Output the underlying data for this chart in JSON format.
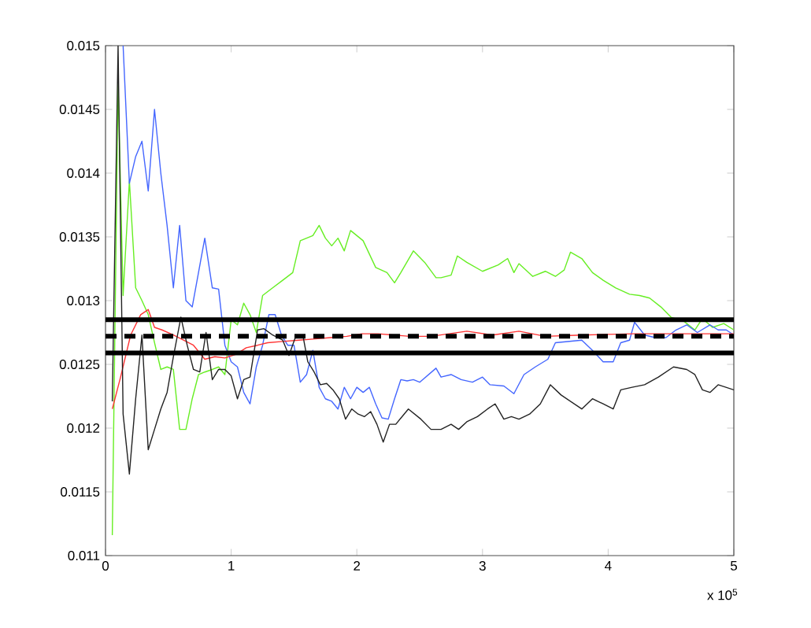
{
  "chart_data": {
    "type": "line",
    "xlim": [
      0,
      5
    ],
    "ylim": [
      0.011,
      0.015
    ],
    "xticks": [
      0,
      1,
      2,
      3,
      4,
      5
    ],
    "yticks": [
      0.011,
      0.0115,
      0.012,
      0.0125,
      0.013,
      0.0135,
      0.014,
      0.0145,
      0.015
    ],
    "annotations": [
      "x 10$^{5}$"
    ],
    "line_style": "solid",
    "marker": "none",
    "ref_lines": [
      {
        "axis": "y",
        "value": 0.01285,
        "color": "#000000",
        "line_style": "solid"
      },
      {
        "axis": "y",
        "value": 0.01272,
        "color": "#000000",
        "line_style": "dashed"
      },
      {
        "axis": "y",
        "value": 0.01259,
        "color": "#000000",
        "line_style": "solid"
      }
    ],
    "series": [
      {
        "color": "#66ee22",
        "x": [
          0.054,
          0.1,
          0.14,
          0.19,
          0.24,
          0.29,
          0.34,
          0.39,
          0.44,
          0.49,
          0.54,
          0.59,
          0.64,
          0.69,
          0.74,
          0.79,
          0.85,
          0.9,
          0.95,
          1.0,
          1.05,
          1.1,
          1.15,
          1.2,
          1.25,
          1.33,
          1.41,
          1.49,
          1.55,
          1.6,
          1.65,
          1.7,
          1.75,
          1.8,
          1.85,
          1.9,
          1.95,
          2.05,
          2.15,
          2.24,
          2.3,
          2.35,
          2.45,
          2.54,
          2.63,
          2.67,
          2.75,
          2.8,
          2.875,
          3.0,
          3.125,
          3.2,
          3.25,
          3.29,
          3.4,
          3.5,
          3.58,
          3.65,
          3.7,
          3.79,
          3.875,
          3.96,
          4.06,
          4.17,
          4.25,
          4.33,
          4.42,
          4.5,
          4.6,
          4.69,
          4.75,
          4.83,
          4.92,
          5.0
        ],
        "values": [
          0.01116,
          0.0147,
          0.01304,
          0.01394,
          0.0131,
          0.013,
          0.01289,
          0.01267,
          0.01246,
          0.01248,
          0.01246,
          0.01199,
          0.01199,
          0.01223,
          0.01242,
          0.01244,
          0.01246,
          0.01248,
          0.01242,
          0.01285,
          0.01281,
          0.01298,
          0.01289,
          0.01275,
          0.01304,
          0.0131,
          0.01316,
          0.01322,
          0.01347,
          0.01349,
          0.01351,
          0.01359,
          0.01349,
          0.01343,
          0.01349,
          0.01339,
          0.01355,
          0.01347,
          0.01326,
          0.01322,
          0.01314,
          0.01322,
          0.01339,
          0.0133,
          0.01318,
          0.01318,
          0.0132,
          0.01335,
          0.0133,
          0.01323,
          0.01328,
          0.01333,
          0.01322,
          0.01329,
          0.01319,
          0.01323,
          0.01319,
          0.01324,
          0.01338,
          0.01333,
          0.01322,
          0.01316,
          0.0131,
          0.01305,
          0.01304,
          0.01302,
          0.01295,
          0.01287,
          0.01284,
          0.01277,
          0.01286,
          0.01279,
          0.01282,
          0.01277
        ]
      },
      {
        "color": "#4466ff",
        "x": [
          0.14,
          0.19,
          0.24,
          0.29,
          0.34,
          0.39,
          0.44,
          0.49,
          0.54,
          0.59,
          0.64,
          0.69,
          0.74,
          0.79,
          0.85,
          0.9,
          0.95,
          1.0,
          1.05,
          1.1,
          1.15,
          1.2,
          1.25,
          1.3,
          1.35,
          1.4,
          1.45,
          1.5,
          1.55,
          1.6,
          1.65,
          1.7,
          1.75,
          1.8,
          1.85,
          1.9,
          1.95,
          2.0,
          2.05,
          2.1,
          2.15,
          2.2,
          2.25,
          2.3,
          2.35,
          2.4,
          2.45,
          2.5,
          2.63,
          2.67,
          2.75,
          2.83,
          2.92,
          3.0,
          3.06,
          3.17,
          3.25,
          3.33,
          3.42,
          3.52,
          3.58,
          3.79,
          3.875,
          3.96,
          4.04,
          4.1,
          4.17,
          4.21,
          4.29,
          4.375,
          4.46,
          4.54,
          4.625,
          4.71,
          4.81,
          4.875,
          4.94,
          5.0
        ],
        "values": [
          0.015,
          0.01392,
          0.01413,
          0.01425,
          0.01386,
          0.0145,
          0.014,
          0.01359,
          0.0131,
          0.01359,
          0.013,
          0.01295,
          0.01322,
          0.01349,
          0.0131,
          0.01309,
          0.01265,
          0.01252,
          0.01248,
          0.01228,
          0.01219,
          0.01248,
          0.01265,
          0.01289,
          0.01289,
          0.01273,
          0.01265,
          0.01265,
          0.01236,
          0.01242,
          0.01261,
          0.01232,
          0.01223,
          0.01221,
          0.01215,
          0.01232,
          0.01223,
          0.01232,
          0.01228,
          0.01232,
          0.01219,
          0.01208,
          0.01207,
          0.01223,
          0.01238,
          0.01237,
          0.01238,
          0.01236,
          0.01247,
          0.0124,
          0.01242,
          0.01238,
          0.01236,
          0.0124,
          0.01234,
          0.01233,
          0.01227,
          0.01242,
          0.01248,
          0.01254,
          0.01267,
          0.01269,
          0.01261,
          0.01252,
          0.01252,
          0.01267,
          0.01269,
          0.01283,
          0.01273,
          0.01271,
          0.01271,
          0.01277,
          0.01281,
          0.01275,
          0.01281,
          0.01277,
          0.01277,
          0.01273
        ]
      },
      {
        "color": "#ff3333",
        "x": [
          0.054,
          0.12,
          0.2,
          0.28,
          0.34,
          0.39,
          0.45,
          0.54,
          0.62,
          0.7,
          0.79,
          0.87,
          0.95,
          1.04,
          1.12,
          1.21,
          1.29,
          1.41,
          1.54,
          1.67,
          1.79,
          1.92,
          2.04,
          2.17,
          2.29,
          2.42,
          2.59,
          2.875,
          3.08,
          3.29,
          3.5,
          3.79,
          4.21,
          4.625,
          5.0
        ],
        "values": [
          0.01215,
          0.0124,
          0.01273,
          0.01289,
          0.01293,
          0.01279,
          0.01277,
          0.01273,
          0.01269,
          0.01265,
          0.01254,
          0.01256,
          0.01255,
          0.01258,
          0.01263,
          0.01265,
          0.01267,
          0.01268,
          0.01269,
          0.0127,
          0.01271,
          0.01272,
          0.01274,
          0.01274,
          0.01273,
          0.01272,
          0.01272,
          0.01276,
          0.01273,
          0.01276,
          0.01272,
          0.01273,
          0.01274,
          0.01274,
          0.01274
        ]
      },
      {
        "color": "#222222",
        "x": [
          0.054,
          0.1,
          0.14,
          0.19,
          0.24,
          0.29,
          0.34,
          0.39,
          0.44,
          0.49,
          0.54,
          0.6,
          0.65,
          0.7,
          0.75,
          0.8,
          0.85,
          0.9,
          0.95,
          1.0,
          1.05,
          1.1,
          1.15,
          1.21,
          1.26,
          1.33,
          1.41,
          1.46,
          1.51,
          1.57,
          1.61,
          1.66,
          1.71,
          1.76,
          1.81,
          1.86,
          1.91,
          1.96,
          2.01,
          2.06,
          2.11,
          2.16,
          2.21,
          2.26,
          2.31,
          2.41,
          2.51,
          2.59,
          2.67,
          2.75,
          2.81,
          2.875,
          2.96,
          3.04,
          3.1,
          3.17,
          3.23,
          3.29,
          3.375,
          3.46,
          3.54,
          3.625,
          3.79,
          3.875,
          3.96,
          4.04,
          4.1,
          4.19,
          4.29,
          4.4,
          4.52,
          4.625,
          4.69,
          4.75,
          4.81,
          4.875,
          5.0
        ],
        "values": [
          0.01221,
          0.015,
          0.01211,
          0.01164,
          0.01223,
          0.01273,
          0.01183,
          0.01199,
          0.01215,
          0.01228,
          0.01256,
          0.01287,
          0.01265,
          0.01246,
          0.01244,
          0.01275,
          0.01238,
          0.01246,
          0.01246,
          0.01241,
          0.01223,
          0.01238,
          0.0124,
          0.01277,
          0.01278,
          0.01273,
          0.01269,
          0.01257,
          0.01271,
          0.01273,
          0.01252,
          0.01244,
          0.01234,
          0.01235,
          0.0123,
          0.01223,
          0.01207,
          0.01215,
          0.01211,
          0.01209,
          0.01213,
          0.01203,
          0.01189,
          0.01203,
          0.01203,
          0.01215,
          0.01207,
          0.01199,
          0.01199,
          0.01203,
          0.01199,
          0.01205,
          0.01209,
          0.01215,
          0.01219,
          0.01207,
          0.01209,
          0.01207,
          0.01211,
          0.01219,
          0.01234,
          0.01226,
          0.01215,
          0.01223,
          0.01219,
          0.01215,
          0.0123,
          0.01232,
          0.01234,
          0.0124,
          0.01248,
          0.01246,
          0.01242,
          0.0123,
          0.01228,
          0.01234,
          0.0123
        ]
      }
    ]
  }
}
